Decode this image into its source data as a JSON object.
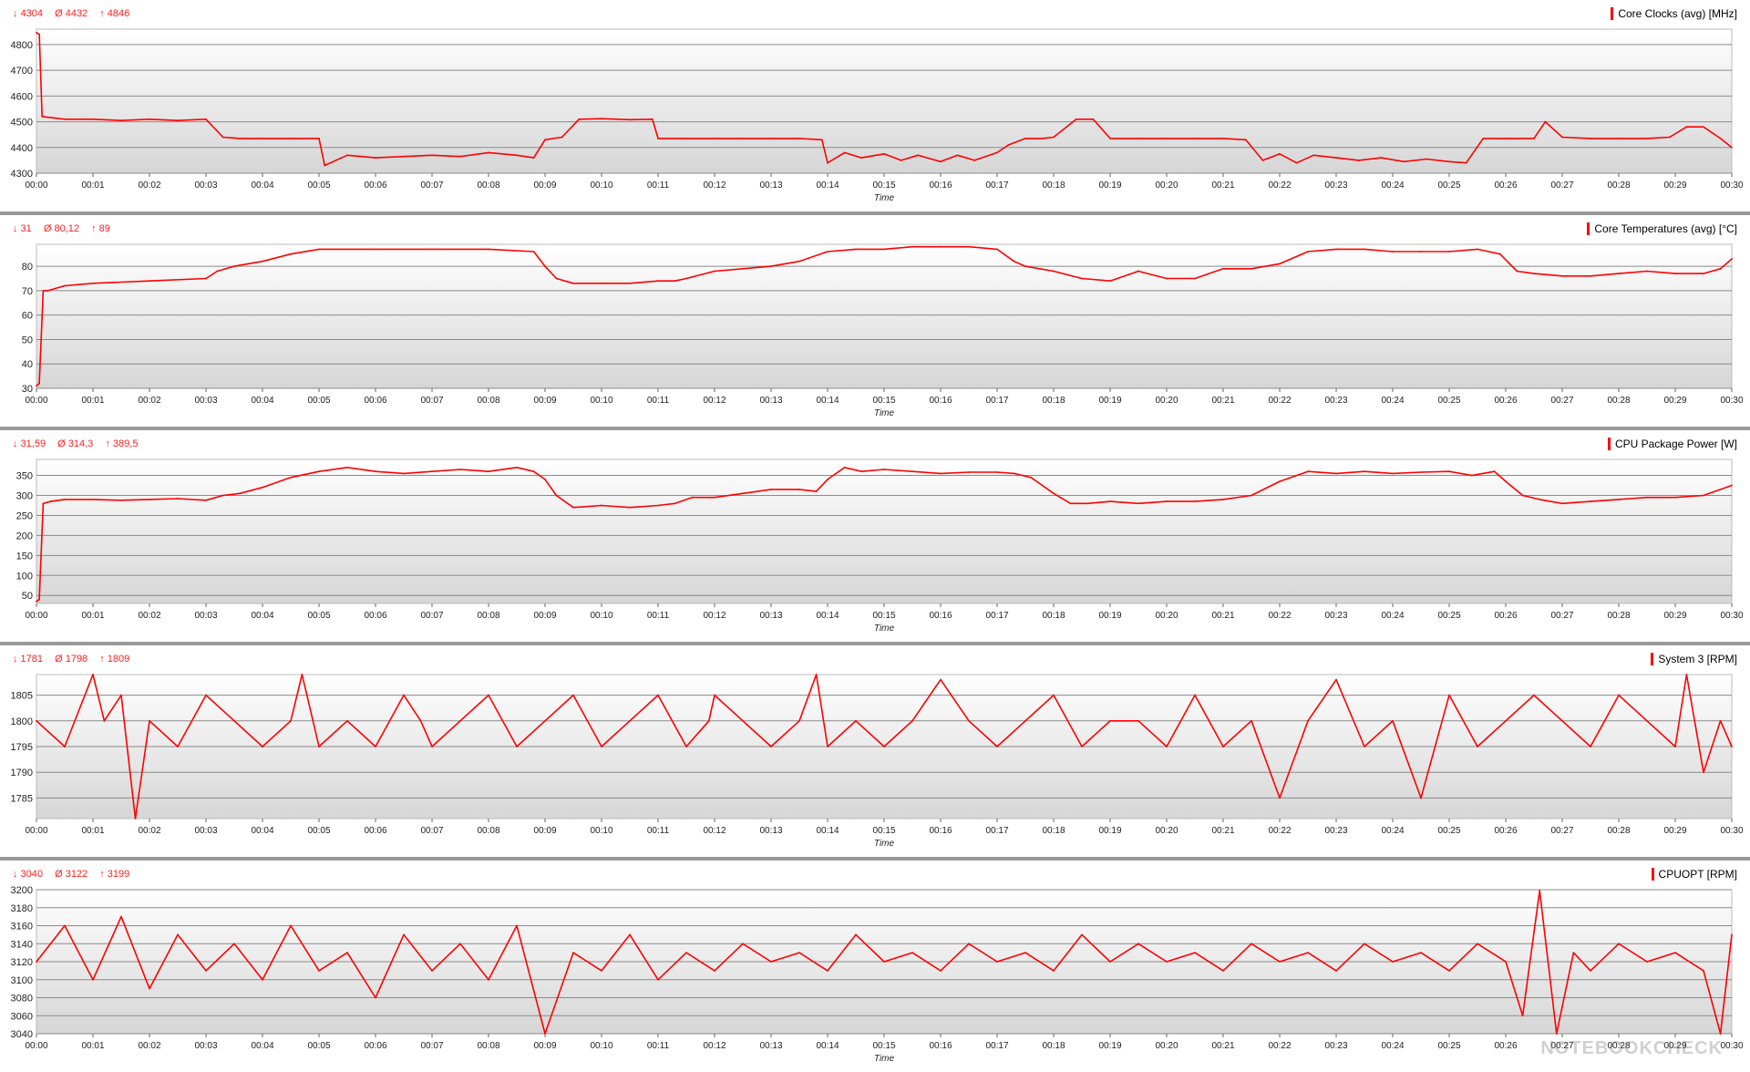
{
  "time_labels": [
    "00:00",
    "00:01",
    "00:02",
    "00:03",
    "00:04",
    "00:05",
    "00:06",
    "00:07",
    "00:08",
    "00:09",
    "00:10",
    "00:11",
    "00:12",
    "00:13",
    "00:14",
    "00:15",
    "00:16",
    "00:17",
    "00:18",
    "00:19",
    "00:20",
    "00:21",
    "00:22",
    "00:23",
    "00:24",
    "00:25",
    "00:26",
    "00:27",
    "00:28",
    "00:29",
    "00:30"
  ],
  "x_axis_label": "Time",
  "watermark": "NOTEBOOKCHECK",
  "accent_color": "#ff0000",
  "chart_data": [
    {
      "type": "line",
      "title": "Core Clocks (avg) [MHz]",
      "stats": {
        "min": "↓ 4304",
        "avg": "Ø 4432",
        "max": "↑ 4846"
      },
      "xlabel": "Time",
      "yticks": [
        4300,
        4400,
        4500,
        4600,
        4700,
        4800
      ],
      "ylim": [
        4300,
        4860
      ],
      "x_minutes": [
        0,
        0.05,
        0.1,
        0.3,
        0.5,
        0.8,
        1.0,
        1.5,
        2.0,
        2.5,
        3.0,
        3.3,
        3.6,
        4.0,
        4.5,
        5.0,
        5.1,
        5.5,
        6.0,
        6.5,
        7.0,
        7.5,
        8.0,
        8.5,
        8.8,
        9.0,
        9.3,
        9.6,
        10.0,
        10.5,
        10.9,
        11.0,
        11.5,
        12.0,
        12.5,
        13.0,
        13.5,
        13.9,
        14.0,
        14.3,
        14.6,
        15.0,
        15.3,
        15.6,
        16.0,
        16.3,
        16.6,
        17.0,
        17.2,
        17.5,
        17.8,
        18.0,
        18.4,
        18.7,
        19.0,
        19.5,
        20.0,
        20.5,
        21.0,
        21.4,
        21.7,
        22.0,
        22.3,
        22.6,
        23.0,
        23.4,
        23.8,
        24.2,
        24.6,
        25.0,
        25.3,
        25.6,
        26.0,
        26.5,
        26.7,
        27.0,
        27.5,
        28.0,
        28.5,
        28.9,
        29.2,
        29.5,
        29.8,
        30.0
      ],
      "values": [
        4846,
        4840,
        4520,
        4515,
        4510,
        4510,
        4510,
        4505,
        4510,
        4505,
        4510,
        4440,
        4435,
        4435,
        4435,
        4435,
        4330,
        4370,
        4360,
        4365,
        4370,
        4365,
        4380,
        4370,
        4360,
        4430,
        4440,
        4510,
        4512,
        4508,
        4510,
        4435,
        4435,
        4435,
        4435,
        4435,
        4435,
        4430,
        4340,
        4380,
        4360,
        4375,
        4350,
        4370,
        4345,
        4370,
        4350,
        4380,
        4410,
        4435,
        4435,
        4440,
        4510,
        4510,
        4435,
        4435,
        4435,
        4435,
        4435,
        4430,
        4350,
        4375,
        4340,
        4370,
        4360,
        4350,
        4360,
        4345,
        4355,
        4345,
        4340,
        4435,
        4435,
        4435,
        4500,
        4440,
        4435,
        4435,
        4435,
        4440,
        4480,
        4480,
        4435,
        4400
      ],
      "series_color": "#ff0000"
    },
    {
      "type": "line",
      "title": "Core Temperatures (avg) [°C]",
      "stats": {
        "min": "↓ 31",
        "avg": "Ø 80,12",
        "max": "↑ 89"
      },
      "xlabel": "Time",
      "yticks": [
        30,
        40,
        50,
        60,
        70,
        80
      ],
      "ylim": [
        30,
        89
      ],
      "x_minutes": [
        0,
        0.05,
        0.12,
        0.2,
        0.5,
        1.0,
        2.0,
        3.0,
        3.2,
        3.5,
        4.0,
        4.5,
        5.0,
        6.0,
        7.0,
        8.0,
        8.8,
        9.0,
        9.2,
        9.5,
        10.0,
        10.5,
        11.0,
        11.3,
        11.5,
        12.0,
        12.5,
        13.0,
        13.5,
        14.0,
        14.5,
        15.0,
        15.5,
        16.0,
        16.5,
        17.0,
        17.3,
        17.5,
        18.0,
        18.5,
        19.0,
        19.5,
        20.0,
        20.5,
        21.0,
        21.5,
        22.0,
        22.5,
        23.0,
        23.5,
        24.0,
        24.5,
        25.0,
        25.5,
        25.9,
        26.2,
        26.5,
        27.0,
        27.5,
        28.0,
        28.5,
        29.0,
        29.5,
        29.8,
        30.0
      ],
      "values": [
        31,
        32,
        70,
        70,
        72,
        73,
        74,
        75,
        78,
        80,
        82,
        85,
        87,
        87,
        87,
        87,
        86,
        80,
        75,
        73,
        73,
        73,
        74,
        74,
        75,
        78,
        79,
        80,
        82,
        86,
        87,
        87,
        88,
        88,
        88,
        87,
        82,
        80,
        78,
        75,
        74,
        78,
        75,
        75,
        79,
        79,
        81,
        86,
        87,
        87,
        86,
        86,
        86,
        87,
        85,
        78,
        77,
        76,
        76,
        77,
        78,
        77,
        77,
        79,
        83
      ],
      "series_color": "#ff0000"
    },
    {
      "type": "line",
      "title": "CPU Package Power [W]",
      "stats": {
        "min": "↓ 31,59",
        "avg": "Ø 314,3",
        "max": "↑ 389,5"
      },
      "xlabel": "Time",
      "yticks": [
        50,
        100,
        150,
        200,
        250,
        300,
        350
      ],
      "ylim": [
        30,
        390
      ],
      "x_minutes": [
        0,
        0.05,
        0.12,
        0.25,
        0.5,
        1.0,
        1.5,
        2.0,
        2.5,
        3.0,
        3.3,
        3.6,
        4.0,
        4.5,
        5.0,
        5.5,
        6.0,
        6.5,
        7.0,
        7.5,
        8.0,
        8.5,
        8.8,
        9.0,
        9.2,
        9.5,
        10.0,
        10.5,
        11.0,
        11.3,
        11.6,
        12.0,
        12.5,
        13.0,
        13.5,
        13.8,
        14.0,
        14.3,
        14.6,
        15.0,
        15.5,
        16.0,
        16.5,
        17.0,
        17.3,
        17.6,
        18.0,
        18.3,
        18.6,
        19.0,
        19.5,
        20.0,
        20.5,
        21.0,
        21.5,
        22.0,
        22.5,
        23.0,
        23.5,
        24.0,
        24.5,
        25.0,
        25.4,
        25.8,
        26.0,
        26.3,
        26.6,
        27.0,
        27.5,
        28.0,
        28.5,
        29.0,
        29.5,
        30.0
      ],
      "values": [
        35,
        40,
        280,
        285,
        290,
        290,
        288,
        290,
        292,
        288,
        300,
        305,
        320,
        345,
        360,
        370,
        360,
        355,
        360,
        365,
        360,
        370,
        360,
        340,
        300,
        270,
        275,
        270,
        275,
        280,
        295,
        295,
        305,
        315,
        315,
        310,
        340,
        370,
        360,
        365,
        360,
        355,
        358,
        358,
        355,
        345,
        305,
        280,
        280,
        285,
        280,
        285,
        285,
        290,
        300,
        335,
        360,
        355,
        360,
        355,
        358,
        360,
        350,
        360,
        335,
        300,
        290,
        280,
        285,
        290,
        295,
        295,
        300,
        325
      ],
      "series_color": "#ff0000"
    },
    {
      "type": "line",
      "title": "System 3 [RPM]",
      "stats": {
        "min": "↓ 1781",
        "avg": "Ø 1798",
        "max": "↑ 1809"
      },
      "xlabel": "Time",
      "yticks": [
        1785,
        1790,
        1795,
        1800,
        1805
      ],
      "ylim": [
        1781,
        1809
      ],
      "x_minutes": [
        0,
        0.5,
        1.0,
        1.2,
        1.5,
        1.75,
        2.0,
        2.5,
        3.0,
        3.5,
        4.0,
        4.5,
        4.7,
        5.0,
        5.5,
        6.0,
        6.5,
        6.8,
        7.0,
        7.5,
        8.0,
        8.5,
        9.0,
        9.5,
        10.0,
        10.5,
        11.0,
        11.5,
        11.9,
        12.0,
        12.5,
        13.0,
        13.5,
        13.8,
        14.0,
        14.5,
        15.0,
        15.5,
        16.0,
        16.5,
        17.0,
        17.5,
        18.0,
        18.5,
        19.0,
        19.5,
        20.0,
        20.5,
        21.0,
        21.5,
        22.0,
        22.5,
        23.0,
        23.5,
        24.0,
        24.5,
        25.0,
        25.5,
        26.0,
        26.5,
        27.0,
        27.5,
        28.0,
        28.5,
        29.0,
        29.2,
        29.5,
        29.8,
        30.0
      ],
      "values": [
        1800,
        1795,
        1809,
        1800,
        1805,
        1781,
        1800,
        1795,
        1805,
        1800,
        1795,
        1800,
        1809,
        1795,
        1800,
        1795,
        1805,
        1800,
        1795,
        1800,
        1805,
        1795,
        1800,
        1805,
        1795,
        1800,
        1805,
        1795,
        1800,
        1805,
        1800,
        1795,
        1800,
        1809,
        1795,
        1800,
        1795,
        1800,
        1808,
        1800,
        1795,
        1800,
        1805,
        1795,
        1800,
        1800,
        1795,
        1805,
        1795,
        1800,
        1785,
        1800,
        1808,
        1795,
        1800,
        1785,
        1805,
        1795,
        1800,
        1805,
        1800,
        1795,
        1805,
        1800,
        1795,
        1809,
        1790,
        1800,
        1795
      ],
      "series_color": "#ff0000"
    },
    {
      "type": "line",
      "title": "CPUOPT [RPM]",
      "stats": {
        "min": "↓ 3040",
        "avg": "Ø 3122",
        "max": "↑ 3199"
      },
      "xlabel": "Time",
      "yticks": [
        3040,
        3060,
        3080,
        3100,
        3120,
        3140,
        3160,
        3180,
        3200
      ],
      "ylim": [
        3040,
        3200
      ],
      "x_minutes": [
        0,
        0.5,
        1.0,
        1.5,
        2.0,
        2.5,
        3.0,
        3.5,
        4.0,
        4.5,
        5.0,
        5.5,
        6.0,
        6.5,
        7.0,
        7.5,
        8.0,
        8.5,
        9.0,
        9.5,
        10.0,
        10.5,
        11.0,
        11.5,
        12.0,
        12.5,
        13.0,
        13.5,
        14.0,
        14.5,
        15.0,
        15.5,
        16.0,
        16.5,
        17.0,
        17.5,
        18.0,
        18.5,
        19.0,
        19.5,
        20.0,
        20.5,
        21.0,
        21.5,
        22.0,
        22.5,
        23.0,
        23.5,
        24.0,
        24.5,
        25.0,
        25.5,
        26.0,
        26.3,
        26.6,
        26.9,
        27.2,
        27.5,
        28.0,
        28.5,
        29.0,
        29.5,
        29.8,
        30.0
      ],
      "values": [
        3120,
        3160,
        3100,
        3170,
        3090,
        3150,
        3110,
        3140,
        3100,
        3160,
        3110,
        3130,
        3080,
        3150,
        3110,
        3140,
        3100,
        3160,
        3040,
        3130,
        3110,
        3150,
        3100,
        3130,
        3110,
        3140,
        3120,
        3130,
        3110,
        3150,
        3120,
        3130,
        3110,
        3140,
        3120,
        3130,
        3110,
        3150,
        3120,
        3140,
        3120,
        3130,
        3110,
        3140,
        3120,
        3130,
        3110,
        3140,
        3120,
        3130,
        3110,
        3140,
        3120,
        3060,
        3199,
        3040,
        3130,
        3110,
        3140,
        3120,
        3130,
        3110,
        3040,
        3150
      ],
      "series_color": "#ff0000"
    }
  ]
}
